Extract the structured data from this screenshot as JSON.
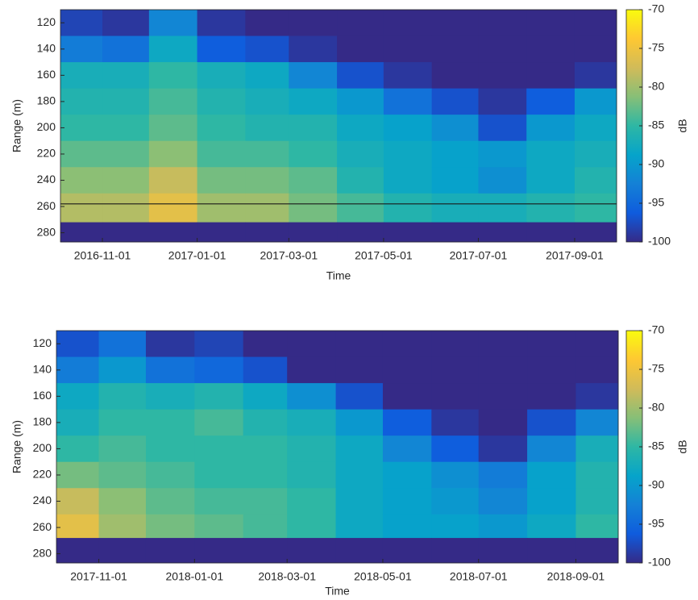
{
  "chart_data": [
    {
      "type": "heatmap",
      "xlabel": "Time",
      "ylabel": "Range (m)",
      "colorbar_label": "dB",
      "x_bins": [
        "2016-10-05",
        "2016-11-01",
        "2016-12-01",
        "2017-01-01",
        "2017-02-01",
        "2017-03-01",
        "2017-04-01",
        "2017-05-01",
        "2017-06-01",
        "2017-07-01",
        "2017-08-01",
        "2017-09-01",
        "2017-09-28"
      ],
      "y_bins": [
        110,
        130,
        150,
        170,
        190,
        210,
        230,
        250,
        272,
        287
      ],
      "z": [
        [
          -98,
          -99,
          -92,
          -99,
          -100,
          -100,
          -100,
          -100,
          -100,
          -100,
          -100,
          -100
        ],
        [
          -93,
          -94,
          -88,
          -96,
          -97,
          -99,
          -100,
          -100,
          -100,
          -100,
          -100,
          -100
        ],
        [
          -87,
          -87,
          -85,
          -87,
          -88,
          -92,
          -97,
          -99,
          -100,
          -100,
          -100,
          -99
        ],
        [
          -86,
          -86,
          -84,
          -86,
          -87,
          -88,
          -90,
          -94,
          -97,
          -99,
          -96,
          -90
        ],
        [
          -85,
          -85,
          -83,
          -85,
          -86,
          -86,
          -88,
          -89,
          -91,
          -97,
          -90,
          -88
        ],
        [
          -83,
          -83,
          -81,
          -84,
          -84,
          -85,
          -87,
          -88,
          -89,
          -90,
          -88,
          -87
        ],
        [
          -81,
          -81,
          -78,
          -82,
          -82,
          -83,
          -86,
          -88,
          -89,
          -91,
          -88,
          -86
        ],
        [
          -79,
          -79,
          -76,
          -80,
          -80,
          -82,
          -84,
          -86,
          -87,
          -87,
          -86,
          -85
        ],
        [
          -100,
          -100,
          -100,
          -100,
          -100,
          -100,
          -100,
          -100,
          -100,
          -100,
          -100,
          -100
        ]
      ],
      "reference_line": 258,
      "xlim": [
        "2016-10-05",
        "2017-09-28"
      ],
      "xticks": [
        "2016-11-01",
        "2017-01-01",
        "2017-03-01",
        "2017-05-01",
        "2017-07-01",
        "2017-09-01"
      ],
      "ylim": [
        287,
        110
      ],
      "yticks": [
        120,
        140,
        160,
        180,
        200,
        220,
        240,
        260,
        280
      ],
      "clim": [
        -100,
        -70
      ],
      "cticks": [
        -70,
        -75,
        -80,
        -85,
        -90,
        -95,
        -100
      ],
      "colormap": [
        "#352a87",
        "#0f5cdd",
        "#1481d6",
        "#06a4ca",
        "#2eb7a4",
        "#87bf77",
        "#d1bb59",
        "#fec832",
        "#f9fb0e"
      ]
    },
    {
      "type": "heatmap",
      "xlabel": "Time",
      "ylabel": "Range (m)",
      "colorbar_label": "dB",
      "x_bins": [
        "2017-10-05",
        "2017-11-01",
        "2017-12-01",
        "2018-01-01",
        "2018-02-01",
        "2018-03-01",
        "2018-04-01",
        "2018-05-01",
        "2018-06-01",
        "2018-07-01",
        "2018-08-01",
        "2018-09-01",
        "2018-09-28"
      ],
      "y_bins": [
        110,
        130,
        150,
        170,
        190,
        210,
        230,
        250,
        268,
        287
      ],
      "z": [
        [
          -97,
          -94,
          -99,
          -98,
          -100,
          -100,
          -100,
          -100,
          -100,
          -100,
          -100,
          -100
        ],
        [
          -93,
          -90,
          -94,
          -95,
          -97,
          -100,
          -100,
          -100,
          -100,
          -100,
          -100,
          -100
        ],
        [
          -88,
          -86,
          -87,
          -86,
          -88,
          -91,
          -97,
          -100,
          -100,
          -100,
          -100,
          -99
        ],
        [
          -87,
          -85,
          -85,
          -84,
          -86,
          -87,
          -90,
          -96,
          -99,
          -100,
          -97,
          -92
        ],
        [
          -85,
          -84,
          -85,
          -85,
          -85,
          -86,
          -88,
          -92,
          -96,
          -99,
          -92,
          -87
        ],
        [
          -82,
          -83,
          -84,
          -85,
          -85,
          -86,
          -88,
          -89,
          -91,
          -93,
          -89,
          -86
        ],
        [
          -78,
          -81,
          -83,
          -84,
          -84,
          -85,
          -88,
          -89,
          -90,
          -92,
          -89,
          -86
        ],
        [
          -76,
          -80,
          -82,
          -83,
          -84,
          -85,
          -88,
          -89,
          -89,
          -90,
          -88,
          -85
        ],
        [
          -100,
          -100,
          -100,
          -100,
          -100,
          -100,
          -100,
          -100,
          -100,
          -100,
          -100,
          -100
        ]
      ],
      "xlim": [
        "2017-10-05",
        "2018-09-28"
      ],
      "xticks": [
        "2017-11-01",
        "2018-01-01",
        "2018-03-01",
        "2018-05-01",
        "2018-07-01",
        "2018-09-01"
      ],
      "ylim": [
        287,
        110
      ],
      "yticks": [
        120,
        140,
        160,
        180,
        200,
        220,
        240,
        260,
        280
      ],
      "clim": [
        -100,
        -70
      ],
      "cticks": [
        -70,
        -75,
        -80,
        -85,
        -90,
        -95,
        -100
      ],
      "colormap": [
        "#352a87",
        "#0f5cdd",
        "#1481d6",
        "#06a4ca",
        "#2eb7a4",
        "#87bf77",
        "#d1bb59",
        "#fec832",
        "#f9fb0e"
      ]
    }
  ]
}
